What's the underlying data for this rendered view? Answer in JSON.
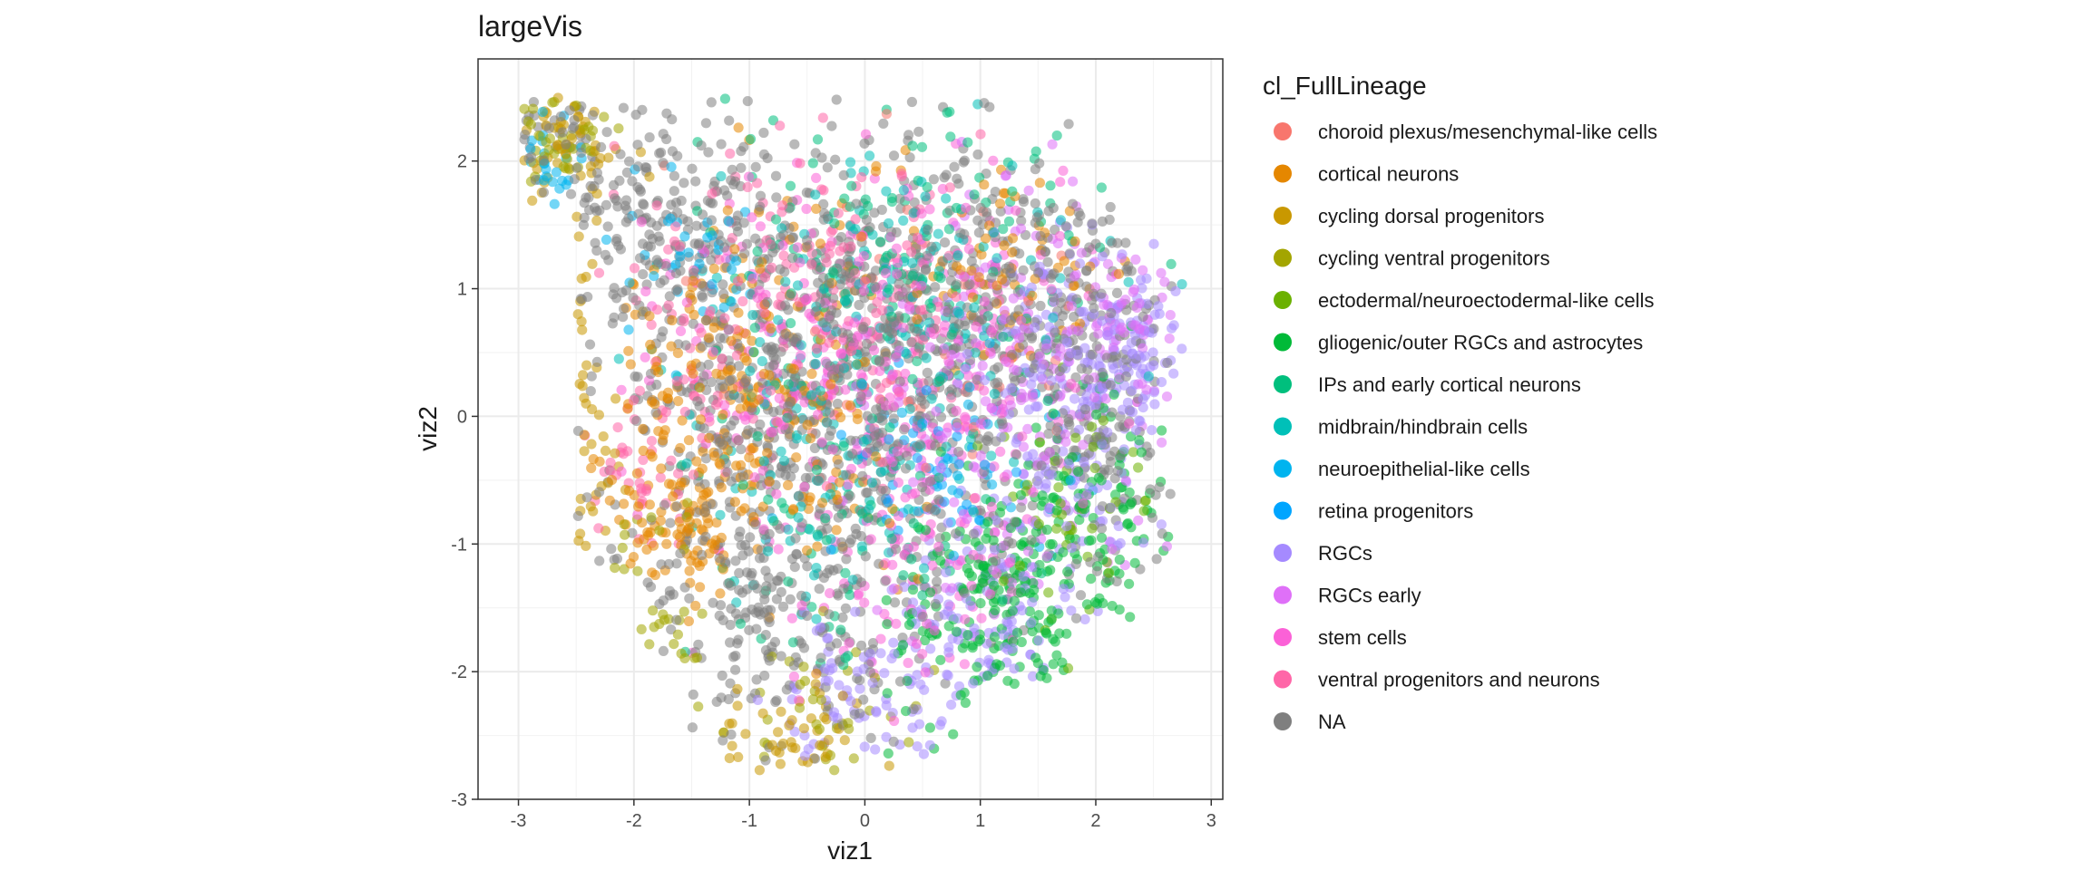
{
  "chart_data": {
    "type": "scatter",
    "title": "largeVis",
    "xlabel": "viz1",
    "ylabel": "viz2",
    "xlim": [
      -3.35,
      3.1
    ],
    "ylim": [
      -3.0,
      2.8
    ],
    "xticks": [
      -3,
      -2,
      -1,
      0,
      1,
      2,
      3
    ],
    "yticks": [
      -3,
      -2,
      -1,
      0,
      1,
      2
    ],
    "xtick_labels": [
      "-3",
      "-2",
      "-1",
      "0",
      "1",
      "2",
      "3"
    ],
    "ytick_labels": [
      "-3",
      "-2",
      "-1",
      "0",
      "1",
      "2"
    ],
    "grid": true,
    "legend": {
      "title": "cl_FullLineage",
      "position": "right"
    },
    "point_alpha": 0.55,
    "series": [
      {
        "name": "choroid plexus/mesenchymal-like cells",
        "color": "#F8766D",
        "clusters": [
          {
            "cx": 0.2,
            "cy": 0.6,
            "sx": 0.8,
            "sy": 0.7,
            "n": 60
          }
        ]
      },
      {
        "name": "cortical neurons",
        "color": "#E58700",
        "clusters": [
          {
            "cx": -1.0,
            "cy": 0.1,
            "sx": 0.7,
            "sy": 0.8,
            "n": 280
          },
          {
            "cx": -1.6,
            "cy": -0.8,
            "sx": 0.3,
            "sy": 0.25,
            "n": 70
          },
          {
            "cx": 1.2,
            "cy": 1.2,
            "sx": 0.6,
            "sy": 0.4,
            "n": 70
          }
        ]
      },
      {
        "name": "cycling dorsal progenitors",
        "color": "#C99800",
        "clusters": [
          {
            "cx": -2.6,
            "cy": 2.1,
            "sx": 0.25,
            "sy": 0.25,
            "n": 50
          },
          {
            "cx": -2.5,
            "cy": 0.0,
            "sx": 0.2,
            "sy": 0.8,
            "n": 40
          },
          {
            "cx": -0.6,
            "cy": -2.5,
            "sx": 0.35,
            "sy": 0.2,
            "n": 45
          }
        ]
      },
      {
        "name": "cycling ventral progenitors",
        "color": "#A3A500",
        "clusters": [
          {
            "cx": -2.7,
            "cy": 2.2,
            "sx": 0.2,
            "sy": 0.2,
            "n": 40
          },
          {
            "cx": -1.8,
            "cy": -1.5,
            "sx": 0.3,
            "sy": 0.4,
            "n": 30
          },
          {
            "cx": -0.3,
            "cy": -2.3,
            "sx": 0.4,
            "sy": 0.3,
            "n": 35
          }
        ]
      },
      {
        "name": "ectodermal/neuroectodermal-like cells",
        "color": "#6BB100",
        "clusters": [
          {
            "cx": 1.8,
            "cy": -0.8,
            "sx": 0.4,
            "sy": 0.5,
            "n": 50
          }
        ]
      },
      {
        "name": "gliogenic/outer RGCs and astrocytes",
        "color": "#00BA38",
        "clusters": [
          {
            "cx": 1.3,
            "cy": -1.5,
            "sx": 0.5,
            "sy": 0.5,
            "n": 220
          },
          {
            "cx": 2.0,
            "cy": -0.5,
            "sx": 0.3,
            "sy": 0.5,
            "n": 80
          }
        ]
      },
      {
        "name": "IPs and early cortical neurons",
        "color": "#00BF7D",
        "clusters": [
          {
            "cx": 0.3,
            "cy": 1.2,
            "sx": 0.9,
            "sy": 0.6,
            "n": 150
          },
          {
            "cx": -0.2,
            "cy": -1.0,
            "sx": 0.7,
            "sy": 0.6,
            "n": 70
          }
        ]
      },
      {
        "name": "midbrain/hindbrain cells",
        "color": "#00C0B8",
        "clusters": [
          {
            "cx": 0.3,
            "cy": 0.8,
            "sx": 0.8,
            "sy": 0.6,
            "n": 180
          },
          {
            "cx": -0.5,
            "cy": -0.5,
            "sx": 0.6,
            "sy": 0.6,
            "n": 80
          }
        ]
      },
      {
        "name": "neuroepithelial-like cells",
        "color": "#00B4EF",
        "clusters": [
          {
            "cx": -2.7,
            "cy": 2.0,
            "sx": 0.15,
            "sy": 0.15,
            "n": 25
          },
          {
            "cx": -1.5,
            "cy": 1.2,
            "sx": 0.4,
            "sy": 0.4,
            "n": 40
          },
          {
            "cx": 0.8,
            "cy": -0.3,
            "sx": 0.5,
            "sy": 0.5,
            "n": 50
          }
        ]
      },
      {
        "name": "retina progenitors",
        "color": "#00A5FF",
        "clusters": [
          {
            "cx": 0.5,
            "cy": -0.4,
            "sx": 0.4,
            "sy": 0.4,
            "n": 30
          }
        ]
      },
      {
        "name": "RGCs",
        "color": "#A58AFF",
        "clusters": [
          {
            "cx": 1.8,
            "cy": 0.0,
            "sx": 0.4,
            "sy": 0.7,
            "n": 200
          },
          {
            "cx": 0.9,
            "cy": -1.7,
            "sx": 0.5,
            "sy": 0.4,
            "n": 120
          },
          {
            "cx": 2.4,
            "cy": 0.5,
            "sx": 0.2,
            "sy": 0.3,
            "n": 60
          },
          {
            "cx": 0.0,
            "cy": -2.3,
            "sx": 0.4,
            "sy": 0.3,
            "n": 60
          }
        ]
      },
      {
        "name": "RGCs early",
        "color": "#DF70F8",
        "clusters": [
          {
            "cx": 1.2,
            "cy": 0.2,
            "sx": 0.6,
            "sy": 0.8,
            "n": 200
          },
          {
            "cx": 2.2,
            "cy": 0.8,
            "sx": 0.3,
            "sy": 0.3,
            "n": 60
          }
        ]
      },
      {
        "name": "stem cells",
        "color": "#FB61D7",
        "clusters": [
          {
            "cx": 0.0,
            "cy": 0.5,
            "sx": 0.9,
            "sy": 0.8,
            "n": 340
          },
          {
            "cx": 0.4,
            "cy": -1.3,
            "sx": 0.5,
            "sy": 0.5,
            "n": 80
          }
        ]
      },
      {
        "name": "ventral progenitors and neurons",
        "color": "#FF66A8",
        "clusters": [
          {
            "cx": -0.6,
            "cy": 0.9,
            "sx": 0.8,
            "sy": 0.6,
            "n": 200
          },
          {
            "cx": -1.8,
            "cy": -0.4,
            "sx": 0.25,
            "sy": 0.3,
            "n": 40
          }
        ]
      },
      {
        "name": "NA",
        "color": "#7F7F7F",
        "clusters": [
          {
            "cx": -0.3,
            "cy": 0.3,
            "sx": 1.1,
            "sy": 1.0,
            "n": 900
          },
          {
            "cx": -1.9,
            "cy": 1.5,
            "sx": 0.5,
            "sy": 0.4,
            "n": 140
          },
          {
            "cx": -0.8,
            "cy": -1.6,
            "sx": 0.5,
            "sy": 0.5,
            "n": 140
          },
          {
            "cx": 1.5,
            "cy": 0.8,
            "sx": 0.6,
            "sy": 0.6,
            "n": 220
          },
          {
            "cx": 2.1,
            "cy": -0.2,
            "sx": 0.3,
            "sy": 0.6,
            "n": 100
          },
          {
            "cx": -2.7,
            "cy": 2.2,
            "sx": 0.2,
            "sy": 0.15,
            "n": 30
          }
        ]
      }
    ]
  }
}
